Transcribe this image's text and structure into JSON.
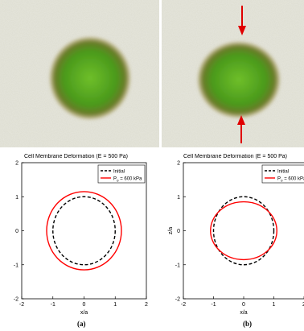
{
  "images": {
    "panels": [
      "cell-before-compression",
      "cell-during-compression"
    ],
    "arrow_color": "#e00000",
    "cell_color": "#4a9a1c",
    "background_color": "#dcdccf"
  },
  "chart_data": [
    {
      "type": "line",
      "panel_label": "(a)",
      "title": "Cell Membrane Deformation (E = 500 Pa)",
      "xlabel": "x/a",
      "ylabel": "",
      "xlim": [
        -2,
        2
      ],
      "ylim": [
        -2,
        2
      ],
      "xticks": [
        "-2",
        "-1",
        "0",
        "1",
        "2"
      ],
      "yticks": [
        "-2",
        "-1",
        "0",
        "1",
        "2"
      ],
      "legend_position": "top-right",
      "series": [
        {
          "name": "Initial",
          "shape": "ellipse",
          "rx": 1.0,
          "ry": 1.0,
          "color": "#000000",
          "style": "dashed"
        },
        {
          "name": "P",
          "name_subscript": "o",
          "name_suffix": " = 600 kPa",
          "shape": "ellipse",
          "rx": 1.2,
          "ry": 1.15,
          "color": "#ff0000",
          "style": "solid"
        }
      ]
    },
    {
      "type": "line",
      "panel_label": "(b)",
      "title": "Cell Membrane Deformation (E = 500 Pa)",
      "xlabel": "x/a",
      "ylabel": "z/a",
      "xlim": [
        -2,
        2
      ],
      "ylim": [
        -2,
        2
      ],
      "xticks": [
        "-2",
        "-1",
        "0",
        "1",
        "2"
      ],
      "yticks": [
        "-2",
        "-1",
        "0",
        "1",
        "2"
      ],
      "legend_position": "top-right",
      "series": [
        {
          "name": "Initial",
          "shape": "ellipse",
          "rx": 1.0,
          "ry": 1.0,
          "color": "#000000",
          "style": "dashed"
        },
        {
          "name": "P",
          "name_subscript": "o",
          "name_suffix": " = 600 kPa",
          "shape": "ellipse",
          "rx": 1.1,
          "ry": 0.85,
          "color": "#ff0000",
          "style": "solid"
        }
      ]
    }
  ]
}
